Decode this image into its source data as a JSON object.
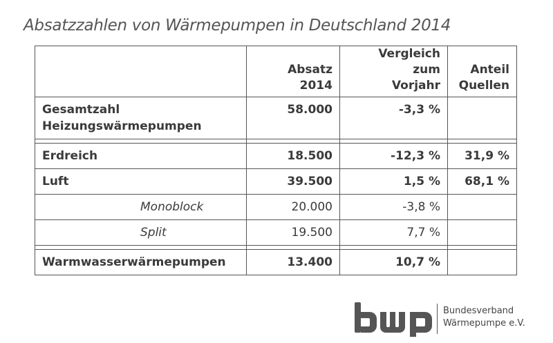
{
  "title": "Absatzzahlen von Wärmepumpen in Deutschland 2014",
  "columns": {
    "absatz": "Absatz 2014",
    "vergleich_line1": "Vergleich zum",
    "vergleich_line2": "Vorjahr",
    "anteil_line1": "Anteil",
    "anteil_line2": "Quellen"
  },
  "rows": {
    "gesamt": {
      "label_line1": "Gesamtzahl",
      "label_line2": "Heizungswärmepumpen",
      "absatz": "58.000",
      "vergleich": "-3,3 %",
      "anteil": ""
    },
    "erdreich": {
      "label": "Erdreich",
      "absatz": "18.500",
      "vergleich": "-12,3 %",
      "anteil": "31,9 %"
    },
    "luft": {
      "label": "Luft",
      "absatz": "39.500",
      "vergleich": "1,5 %",
      "anteil": "68,1 %"
    },
    "monoblock": {
      "label": "Monoblock",
      "absatz": "20.000",
      "vergleich": "-3,8 %",
      "anteil": ""
    },
    "split": {
      "label": "Split",
      "absatz": "19.500",
      "vergleich": "7,7 %",
      "anteil": ""
    },
    "warmwasser": {
      "label": "Warmwasserwärmepumpen",
      "absatz": "13.400",
      "vergleich": "10,7 %",
      "anteil": ""
    }
  },
  "logo": {
    "mark": "bwp",
    "line1": "Bundesverband",
    "line2": "Wärmepumpe e.V.",
    "color": "#555555"
  }
}
